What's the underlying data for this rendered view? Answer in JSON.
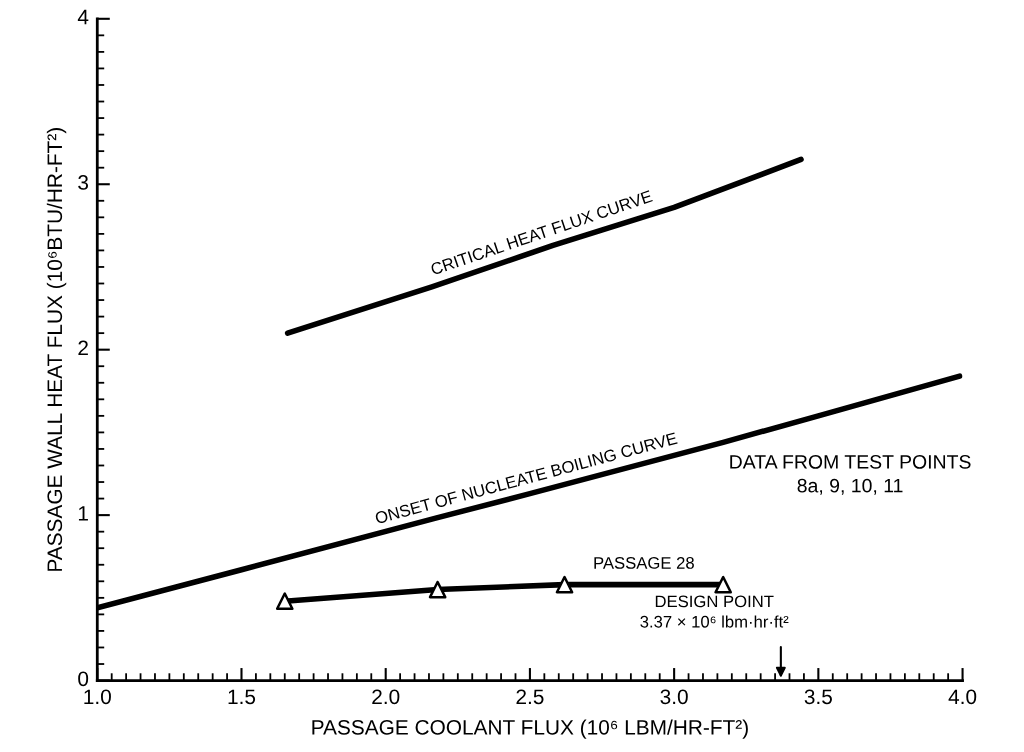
{
  "chart_data": {
    "type": "line",
    "xlabel": "PASSAGE COOLANT FLUX (10⁶ LBM/HR-FT²)",
    "ylabel": "PASSAGE WALL HEAT FLUX (10⁶BTU/HR-FT²)",
    "xlim": [
      1.0,
      4.0
    ],
    "ylim": [
      0,
      4
    ],
    "xticks": [
      {
        "value": 1.0,
        "label": "1.0"
      },
      {
        "value": 1.5,
        "label": "1.5"
      },
      {
        "value": 2.0,
        "label": "2.0"
      },
      {
        "value": 2.5,
        "label": "2.5"
      },
      {
        "value": 3.0,
        "label": "3.0"
      },
      {
        "value": 3.5,
        "label": "3.5"
      },
      {
        "value": 4.0,
        "label": "4.0"
      }
    ],
    "yticks": [
      0,
      1,
      2,
      3,
      4
    ],
    "grid": false,
    "legend": false,
    "series": [
      {
        "name": "CRITICAL HEAT FLUX CURVE",
        "color": "#000000",
        "marker": "none",
        "x": [
          1.66,
          2.16,
          2.58,
          3.0,
          3.44
        ],
        "values": [
          2.1,
          2.38,
          2.63,
          2.86,
          3.15
        ]
      },
      {
        "name": "ONSET OF NUCLEATE BOILING CURVE",
        "color": "#000000",
        "marker": "none",
        "x": [
          1.0,
          1.5,
          2.17,
          2.5,
          3.17,
          3.5,
          3.99
        ],
        "values": [
          0.44,
          0.67,
          0.98,
          1.13,
          1.44,
          1.6,
          1.84
        ]
      },
      {
        "name": "PASSAGE 28",
        "color": "#000000",
        "marker": "triangle",
        "x": [
          1.65,
          2.18,
          2.62,
          3.17
        ],
        "values": [
          0.48,
          0.55,
          0.58,
          0.58
        ]
      }
    ],
    "annotations": [
      "DESIGN POINT\n3.37 × 10⁶ lbm·hr·ft²",
      "DATA FROM TEST POINTS\n8a, 9, 10, 11"
    ]
  }
}
